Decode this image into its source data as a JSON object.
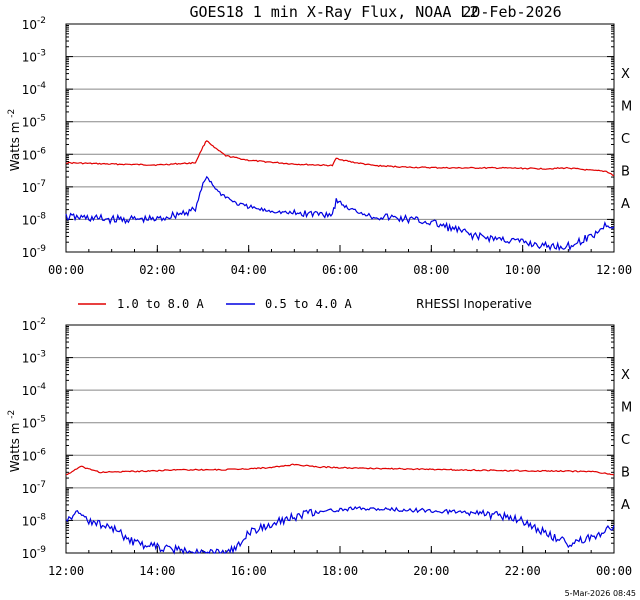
{
  "title": "GOES18 1 min X-Ray Flux, NOAA L2",
  "date": "20-Feb-2026",
  "footer": "5-Mar-2026 08:45",
  "legend": {
    "long_label": "1.0 to 8.0 A",
    "short_label": "0.5 to 4.0 A",
    "note": "RHESSI Inoperative",
    "long_color": "#e00000",
    "short_color": "#0000e0"
  },
  "ylabel_main": "Watts m",
  "ylabel_exp": "-2",
  "yaxis": {
    "scale": "log",
    "ylim": [
      1e-09,
      0.01
    ],
    "ticks": [
      {
        "base": "10",
        "exp": "-2",
        "value": 0.01
      },
      {
        "base": "10",
        "exp": "-3",
        "value": 0.001
      },
      {
        "base": "10",
        "exp": "-4",
        "value": 0.0001
      },
      {
        "base": "10",
        "exp": "-5",
        "value": 1e-05
      },
      {
        "base": "10",
        "exp": "-6",
        "value": 1e-06
      },
      {
        "base": "10",
        "exp": "-7",
        "value": 1e-07
      },
      {
        "base": "10",
        "exp": "-8",
        "value": 1e-08
      },
      {
        "base": "10",
        "exp": "-9",
        "value": 1e-09
      }
    ]
  },
  "flare_classes": [
    {
      "label": "X",
      "value": 0.0001
    },
    {
      "label": "M",
      "value": 1e-05
    },
    {
      "label": "C",
      "value": 1e-06
    },
    {
      "label": "B",
      "value": 1e-07
    },
    {
      "label": "A",
      "value": 1e-08
    }
  ],
  "chart_data": [
    {
      "type": "line",
      "grid": true,
      "xlim": [
        "00:00",
        "12:00"
      ],
      "xticks": [
        "00:00",
        "02:00",
        "04:00",
        "06:00",
        "08:00",
        "10:00",
        "12:00"
      ],
      "series": [
        {
          "name": "1.0 to 8.0 A",
          "x": [
            "00:00",
            "01:00",
            "02:00",
            "02:50",
            "03:00",
            "03:05",
            "03:15",
            "03:30",
            "04:00",
            "05:00",
            "05:50",
            "05:55",
            "06:15",
            "06:45",
            "07:30",
            "08:30",
            "09:30",
            "10:30",
            "11:00",
            "11:30",
            "11:50",
            "12:00"
          ],
          "y": [
            5.5e-07,
            5e-07,
            4.7e-07,
            5.5e-07,
            1.7e-06,
            2.7e-06,
            1.6e-06,
            9e-07,
            6.5e-07,
            5e-07,
            4.5e-07,
            7.5e-07,
            5.8e-07,
            4.5e-07,
            4e-07,
            3.8e-07,
            3.8e-07,
            3.6e-07,
            3.8e-07,
            3.2e-07,
            3e-07,
            2.2e-07
          ]
        },
        {
          "name": "0.5 to 4.0 A",
          "x": [
            "00:00",
            "01:00",
            "02:00",
            "02:50",
            "03:00",
            "03:05",
            "03:20",
            "03:45",
            "04:15",
            "05:00",
            "05:50",
            "05:55",
            "06:10",
            "06:40",
            "07:30",
            "08:00",
            "08:30",
            "09:00",
            "09:30",
            "10:00",
            "10:30",
            "11:00",
            "11:30",
            "11:50",
            "12:00"
          ],
          "y": [
            1.2e-08,
            1e-08,
            1e-08,
            2e-08,
            1.2e-07,
            2.1e-07,
            7e-08,
            3e-08,
            2e-08,
            1.5e-08,
            1.5e-08,
            4e-08,
            2.2e-08,
            1.3e-08,
            1e-08,
            8e-09,
            5e-09,
            3e-09,
            2.5e-09,
            2e-09,
            1.5e-09,
            1.5e-09,
            3e-09,
            7e-09,
            6e-09
          ]
        }
      ]
    },
    {
      "type": "line",
      "grid": true,
      "xlim": [
        "12:00",
        "00:00"
      ],
      "xticks": [
        "12:00",
        "14:00",
        "16:00",
        "18:00",
        "20:00",
        "22:00",
        "00:00"
      ],
      "series": [
        {
          "name": "1.0 to 8.0 A",
          "x": [
            "12:00",
            "12:20",
            "12:45",
            "13:30",
            "14:30",
            "15:30",
            "16:30",
            "17:00",
            "17:30",
            "18:30",
            "19:30",
            "20:30",
            "21:30",
            "22:30",
            "23:30",
            "00:00"
          ],
          "y": [
            2.5e-07,
            4.5e-07,
            3e-07,
            3.2e-07,
            3.6e-07,
            3.6e-07,
            4.2e-07,
            5.2e-07,
            4.4e-07,
            4e-07,
            3.8e-07,
            3.6e-07,
            3.4e-07,
            3.3e-07,
            3.2e-07,
            2.5e-07
          ]
        },
        {
          "name": "0.5 to 4.0 A",
          "x": [
            "12:00",
            "12:15",
            "12:30",
            "13:00",
            "13:30",
            "14:00",
            "14:30",
            "15:00",
            "15:30",
            "15:45",
            "16:00",
            "16:30",
            "17:00",
            "17:30",
            "18:00",
            "18:30",
            "19:00",
            "19:30",
            "20:00",
            "20:30",
            "21:00",
            "21:30",
            "22:00",
            "22:30",
            "23:00",
            "23:30",
            "00:00"
          ],
          "y": [
            1e-08,
            1.8e-08,
            1e-08,
            6e-09,
            2e-09,
            1.5e-09,
            1.2e-09,
            1e-09,
            1e-09,
            1.5e-09,
            4e-09,
            8e-09,
            1.3e-08,
            1.8e-08,
            2.2e-08,
            2.3e-08,
            2.2e-08,
            2.1e-08,
            2e-08,
            1.8e-08,
            1.6e-08,
            1.4e-08,
            1e-08,
            4e-09,
            2e-09,
            3e-09,
            7e-09
          ]
        }
      ]
    }
  ]
}
